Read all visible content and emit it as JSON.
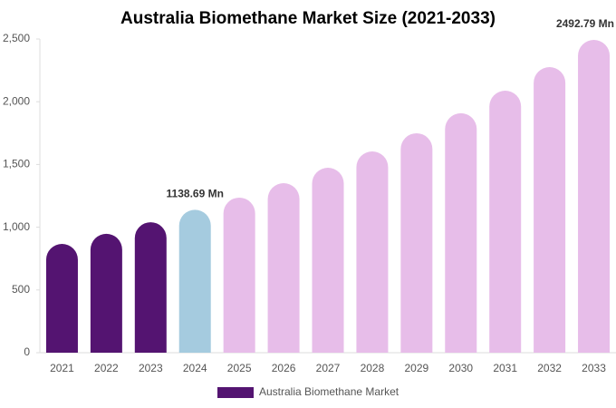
{
  "chart_data": {
    "type": "bar",
    "title": "Australia Biomethane Market Size (2021-2033)",
    "categories": [
      "2021",
      "2022",
      "2023",
      "2024",
      "2025",
      "2026",
      "2027",
      "2028",
      "2029",
      "2030",
      "2031",
      "2032",
      "2033"
    ],
    "series": [
      {
        "name": "Australia Biomethane Market",
        "color": "#541471",
        "colors": [
          "#541471",
          "#541471",
          "#541471",
          "#a5cbdf",
          "#e7bde9",
          "#e7bde9",
          "#e7bde9",
          "#e7bde9",
          "#e7bde9",
          "#e7bde9",
          "#e7bde9",
          "#e7bde9",
          "#e7bde9"
        ],
        "values": [
          867,
          947,
          1040,
          1138.69,
          1236,
          1351,
          1474,
          1604,
          1749,
          1908,
          2088,
          2276,
          2492.79
        ],
        "value_labels": [
          null,
          null,
          null,
          "1138.69 Mn",
          null,
          null,
          null,
          null,
          null,
          null,
          null,
          null,
          "2492.79 Mn"
        ]
      }
    ],
    "ylim": [
      0,
      2500
    ],
    "yticks": [
      0,
      500,
      {
        "value": 1000,
        "label": "1,000"
      },
      {
        "value": 1500,
        "label": "1,500"
      },
      {
        "value": 2000,
        "label": "2,000"
      },
      {
        "value": 2500,
        "label": "2,500"
      }
    ],
    "grid": false,
    "legend": "bottom"
  }
}
